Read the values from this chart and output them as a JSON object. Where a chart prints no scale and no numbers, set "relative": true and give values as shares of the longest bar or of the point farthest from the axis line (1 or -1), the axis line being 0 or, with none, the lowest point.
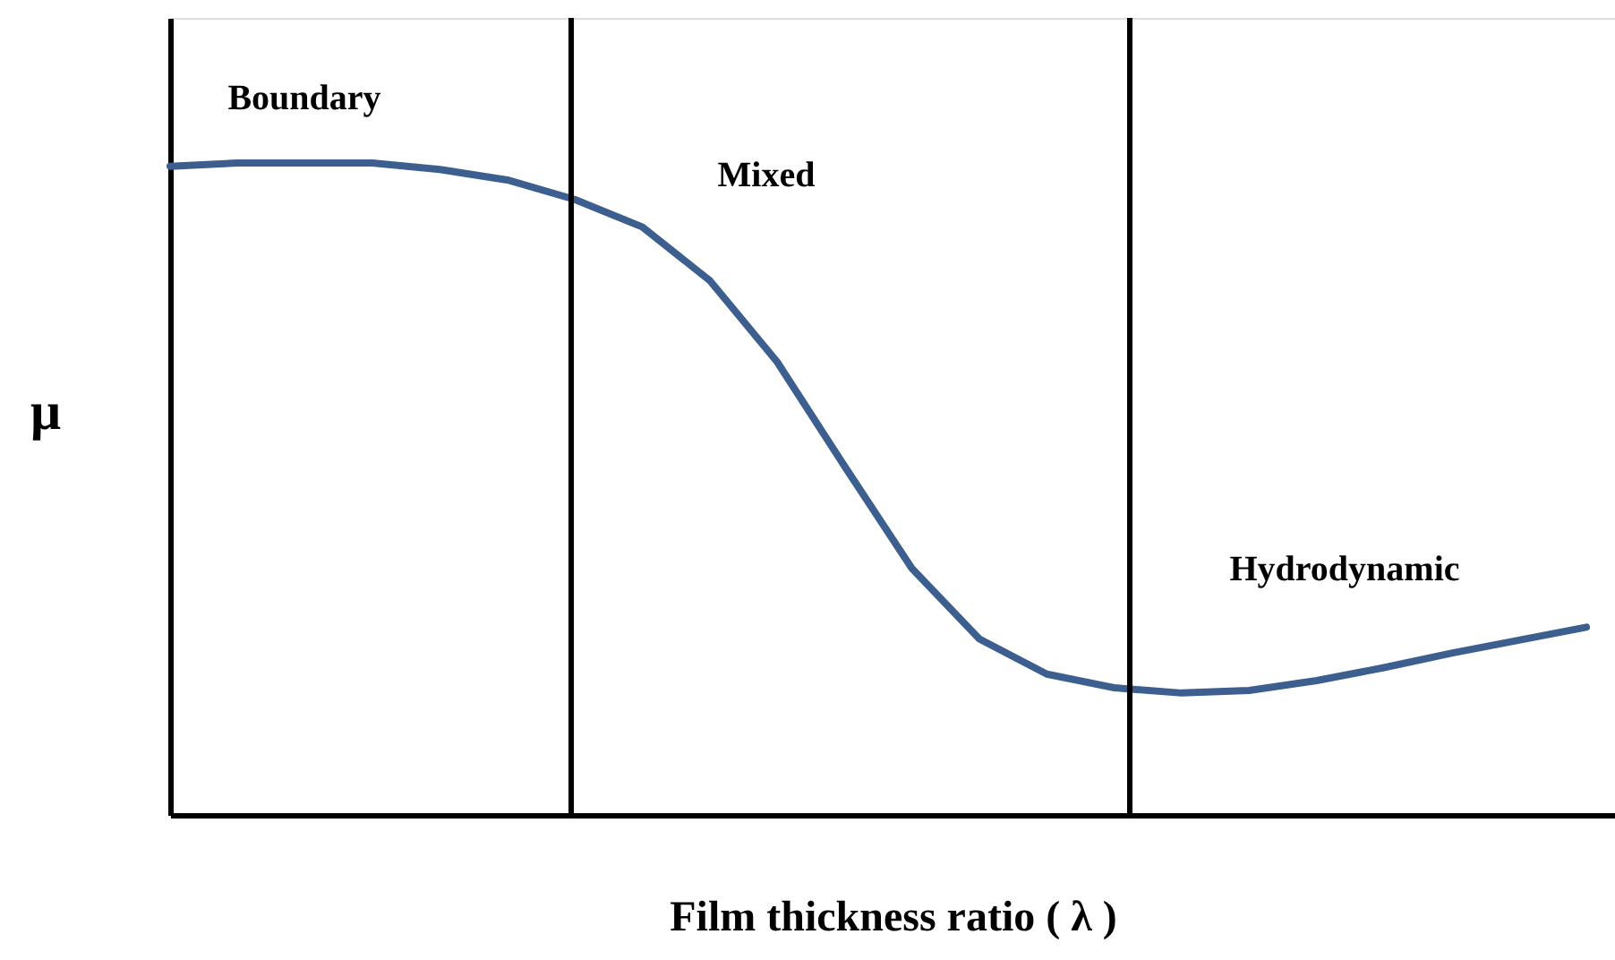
{
  "chart_data": {
    "type": "line",
    "relative": true,
    "xlabel": "Film thickness ratio ( λ )",
    "ylabel": "μ",
    "categories": [
      null,
      null,
      null,
      null,
      null,
      null,
      null,
      null,
      null,
      null,
      null,
      null,
      null,
      null,
      null,
      null,
      null,
      null,
      null,
      null,
      null,
      null
    ],
    "tick_labels": false,
    "grid": false,
    "marker": "none",
    "line_style": "solid",
    "series": [
      {
        "color": "#3c5f8f",
        "values": [
          0.995,
          1.0,
          1.0,
          1.0,
          0.99,
          0.974,
          0.944,
          0.902,
          0.82,
          0.695,
          0.535,
          0.378,
          0.27,
          0.216,
          0.195,
          0.187,
          0.191,
          0.206,
          0.226,
          0.248,
          0.268,
          0.288
        ]
      }
    ],
    "annotations": [
      "Boundary",
      "Mixed",
      "Hydrodynamic"
    ]
  }
}
